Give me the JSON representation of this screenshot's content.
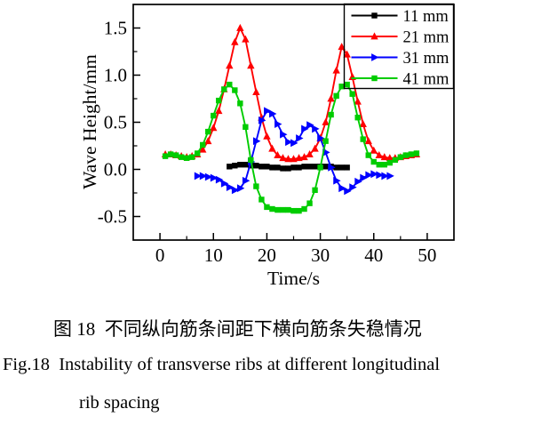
{
  "figure": {
    "caption_zh": "图 18  不同纵向筋条间距下横向筋条失稳情况",
    "caption_en_line1": "Fig.18  Instability of transverse ribs at different longitudinal",
    "caption_en_line2": "rib spacing"
  },
  "chart_data": {
    "type": "line",
    "title": "",
    "xlabel": "Time/s",
    "ylabel": "Wave Height/mm",
    "xlim": [
      -5,
      55
    ],
    "ylim": [
      -0.75,
      1.75
    ],
    "xticks": [
      0,
      10,
      20,
      30,
      40,
      50
    ],
    "x_minor_ticks": [
      5,
      15,
      25,
      35,
      45
    ],
    "yticks": [
      -0.5,
      0.0,
      0.5,
      1.0,
      1.5
    ],
    "y_minor_ticks": [
      -0.25,
      0.25,
      0.75,
      1.25
    ],
    "grid": false,
    "legend_position": "top-right",
    "axis_color": "#000000",
    "series": [
      {
        "name": "11 mm",
        "color": "#000000",
        "marker": "square",
        "x": [
          13,
          14,
          15,
          16,
          17,
          18,
          19,
          20,
          21,
          22,
          23,
          24,
          25,
          26,
          27,
          28,
          29,
          30,
          31,
          32,
          33,
          34,
          35
        ],
        "y": [
          0.03,
          0.04,
          0.05,
          0.05,
          0.04,
          0.04,
          0.03,
          0.03,
          0.02,
          0.02,
          0.01,
          0.01,
          0.02,
          0.02,
          0.03,
          0.03,
          0.03,
          0.03,
          0.03,
          0.03,
          0.02,
          0.02,
          0.02
        ]
      },
      {
        "name": "21 mm",
        "color": "#ff0000",
        "marker": "triangle-up",
        "x": [
          1,
          2,
          3,
          4,
          5,
          6,
          7,
          8,
          9,
          10,
          11,
          12,
          13,
          14,
          15,
          16,
          17,
          18,
          19,
          20,
          21,
          22,
          23,
          24,
          25,
          26,
          27,
          28,
          29,
          30,
          31,
          32,
          33,
          34,
          35,
          36,
          37,
          38,
          39,
          40,
          41,
          42,
          43,
          44,
          45,
          46,
          47,
          48
        ],
        "y": [
          0.16,
          0.16,
          0.15,
          0.14,
          0.13,
          0.14,
          0.16,
          0.21,
          0.3,
          0.44,
          0.62,
          0.85,
          1.1,
          1.35,
          1.5,
          1.38,
          1.1,
          0.82,
          0.55,
          0.35,
          0.22,
          0.15,
          0.12,
          0.11,
          0.11,
          0.12,
          0.13,
          0.16,
          0.22,
          0.33,
          0.5,
          0.75,
          1.05,
          1.3,
          1.22,
          0.98,
          0.72,
          0.48,
          0.3,
          0.2,
          0.15,
          0.13,
          0.12,
          0.12,
          0.13,
          0.14,
          0.15,
          0.16
        ]
      },
      {
        "name": "31 mm",
        "color": "#0000ff",
        "marker": "triangle-right",
        "x": [
          7,
          8,
          9,
          10,
          11,
          12,
          13,
          14,
          15,
          16,
          17,
          18,
          19,
          20,
          21,
          22,
          23,
          24,
          25,
          26,
          27,
          28,
          29,
          30,
          31,
          32,
          33,
          34,
          35,
          36,
          37,
          38,
          39,
          40,
          41,
          42,
          43
        ],
        "y": [
          -0.07,
          -0.07,
          -0.08,
          -0.09,
          -0.11,
          -0.15,
          -0.19,
          -0.22,
          -0.2,
          -0.12,
          0.08,
          0.3,
          0.52,
          0.62,
          0.59,
          0.48,
          0.37,
          0.29,
          0.28,
          0.33,
          0.43,
          0.47,
          0.43,
          0.33,
          0.18,
          0.02,
          -0.12,
          -0.2,
          -0.23,
          -0.19,
          -0.13,
          -0.09,
          -0.06,
          -0.05,
          -0.06,
          -0.07,
          -0.07
        ]
      },
      {
        "name": "41 mm",
        "color": "#00cc00",
        "marker": "square",
        "x": [
          1,
          2,
          3,
          4,
          5,
          6,
          7,
          8,
          9,
          10,
          11,
          12,
          13,
          14,
          15,
          16,
          17,
          18,
          19,
          20,
          21,
          22,
          23,
          24,
          25,
          26,
          27,
          28,
          29,
          30,
          31,
          32,
          33,
          34,
          35,
          36,
          37,
          38,
          39,
          40,
          41,
          42,
          43,
          44,
          45,
          46,
          47,
          48
        ],
        "y": [
          0.14,
          0.16,
          0.15,
          0.13,
          0.12,
          0.13,
          0.17,
          0.26,
          0.4,
          0.57,
          0.73,
          0.85,
          0.9,
          0.84,
          0.7,
          0.45,
          0.1,
          -0.18,
          -0.32,
          -0.4,
          -0.42,
          -0.43,
          -0.43,
          -0.43,
          -0.44,
          -0.44,
          -0.42,
          -0.36,
          -0.22,
          0.02,
          0.3,
          0.58,
          0.78,
          0.88,
          0.9,
          0.8,
          0.55,
          0.32,
          0.15,
          0.08,
          0.05,
          0.05,
          0.07,
          0.1,
          0.13,
          0.15,
          0.16,
          0.17
        ]
      }
    ]
  }
}
